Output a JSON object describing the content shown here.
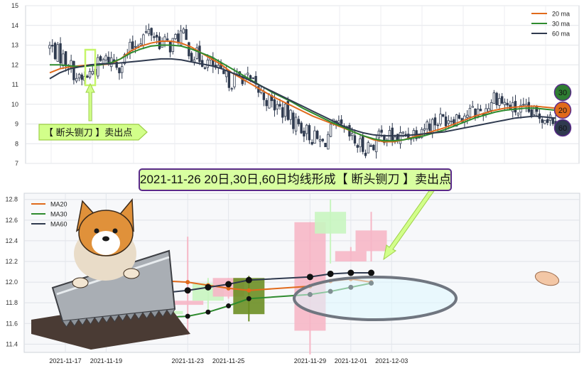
{
  "chart_data": [
    {
      "type": "candlestick",
      "ylim": [
        7,
        15
      ],
      "yticks": [
        "7",
        "8",
        "9",
        "10",
        "11",
        "12",
        "13",
        "14",
        "15"
      ],
      "grid": true,
      "legend_placement": "top-right",
      "legend": [
        {
          "name": "20 ma",
          "color": "#e06a1c"
        },
        {
          "name": "30 ma",
          "color": "#2e8b2e"
        },
        {
          "name": "60 ma",
          "color": "#2f3a4f"
        }
      ],
      "ma_series": [
        {
          "name": "20 ma",
          "color": "#e06a1c",
          "values": [
            11.6,
            11.8,
            11.9,
            11.95,
            12.0,
            12.0,
            12.05,
            12.3,
            12.7,
            12.95,
            13.1,
            13.2,
            13.2,
            13.1,
            12.9,
            12.6,
            12.3,
            12.0,
            11.6,
            11.3,
            11.0,
            10.7,
            10.4,
            10.15,
            9.9,
            9.65,
            9.4,
            9.2,
            9.0,
            8.8,
            8.6,
            8.4,
            8.2,
            8.1,
            8.1,
            8.2,
            8.35,
            8.5,
            8.65,
            8.8,
            9.0,
            9.2,
            9.4,
            9.55,
            9.7,
            9.8,
            9.85,
            9.9,
            9.9,
            9.85,
            9.8
          ]
        },
        {
          "name": "30 ma",
          "color": "#2e8b2e",
          "values": [
            12.0,
            12.0,
            11.95,
            11.9,
            11.95,
            12.0,
            12.1,
            12.3,
            12.6,
            12.8,
            12.95,
            13.0,
            13.0,
            12.95,
            12.8,
            12.6,
            12.4,
            12.1,
            11.8,
            11.5,
            11.2,
            10.9,
            10.6,
            10.35,
            10.1,
            9.8,
            9.55,
            9.3,
            9.05,
            8.85,
            8.6,
            8.4,
            8.25,
            8.15,
            8.15,
            8.2,
            8.3,
            8.4,
            8.55,
            8.7,
            8.9,
            9.1,
            9.3,
            9.45,
            9.6,
            9.7,
            9.75,
            9.8,
            9.8,
            9.75,
            9.7
          ]
        },
        {
          "name": "60 ma",
          "color": "#2f3a4f",
          "values": [
            11.3,
            11.6,
            11.8,
            11.9,
            12.0,
            12.05,
            12.05,
            12.1,
            12.15,
            12.2,
            12.25,
            12.3,
            12.3,
            12.25,
            12.15,
            12.05,
            11.95,
            11.8,
            11.6,
            11.4,
            11.15,
            10.9,
            10.65,
            10.4,
            10.15,
            9.9,
            9.65,
            9.4,
            9.15,
            8.9,
            8.7,
            8.55,
            8.45,
            8.4,
            8.4,
            8.4,
            8.45,
            8.5,
            8.55,
            8.6,
            8.7,
            8.8,
            8.9,
            9.0,
            9.1,
            9.2,
            9.3,
            9.35,
            9.4,
            9.35,
            9.3
          ]
        }
      ],
      "price_path": [
        12.9,
        12.5,
        12.0,
        11.1,
        11.6,
        12.1,
        12.3,
        12.0,
        12.8,
        13.4,
        13.7,
        13.1,
        13.0,
        13.6,
        12.6,
        12.3,
        12.0,
        11.4,
        11.2,
        11.5,
        11.0,
        10.5,
        10.0,
        9.7,
        9.2,
        8.8,
        8.3,
        8.0,
        8.8,
        8.7,
        8.1,
        7.8,
        8.0,
        8.5,
        8.2,
        8.4,
        8.6,
        8.9,
        9.1,
        9.3,
        9.4,
        9.5,
        9.6,
        9.7,
        10.5,
        10.0,
        9.7,
        9.6,
        9.5,
        9.4,
        9.3
      ],
      "circle_labels": [
        "30",
        "20",
        "60"
      ],
      "annotation": "【 断头铡刀 】卖出点"
    },
    {
      "type": "candlestick",
      "title": "2021-11-26 20日,30日,60日均线形成【 断头铡刀 】卖出点",
      "xticks": [
        "2021-11-17",
        "2021-11-19",
        "2021-11-23",
        "2021-11-25",
        "2021-11-29",
        "2021-12-01",
        "2021-12-03"
      ],
      "yticks": [
        "11.4",
        "11.6",
        "11.8",
        "12.0",
        "12.2",
        "12.4",
        "12.6",
        "12.8"
      ],
      "ylim": [
        11.32,
        12.86
      ],
      "grid": true,
      "legend_placement": "top-left",
      "legend": [
        {
          "name": "MA20",
          "color": "#e06a1c"
        },
        {
          "name": "MA30",
          "color": "#2e8b2e"
        },
        {
          "name": "MA60",
          "color": "#2f3a4f"
        }
      ],
      "candles": [
        {
          "date": "2021-11-22",
          "open": 11.72,
          "close": 11.69,
          "high": 12.17,
          "low": 11.64,
          "color": "#c8f5c0"
        },
        {
          "date": "2021-11-23",
          "open": 11.78,
          "close": 11.82,
          "high": 12.44,
          "low": 11.49,
          "color": "#f6b7c6"
        },
        {
          "date": "2021-11-24",
          "open": 11.99,
          "close": 11.82,
          "high": 12.04,
          "low": 11.7,
          "color": "#c8f5c0"
        },
        {
          "date": "2021-11-25",
          "open": 11.86,
          "close": 12.04,
          "high": 12.04,
          "low": 11.84,
          "color": "#f6b7c6"
        },
        {
          "date": "2021-11-26",
          "open": 12.04,
          "close": 11.69,
          "high": 12.06,
          "low": 11.62,
          "color": "#6b8e23"
        },
        {
          "date": "2021-11-29",
          "open": 11.53,
          "close": 12.58,
          "high": 12.58,
          "low": 11.3,
          "color": "#f6b7c6"
        },
        {
          "date": "2021-11-30",
          "open": 12.68,
          "close": 12.47,
          "high": 12.8,
          "low": 12.18,
          "color": "#c8f5c0"
        },
        {
          "date": "2021-12-01",
          "open": 12.2,
          "close": 12.3,
          "high": 12.34,
          "low": 12.2,
          "color": "#f6b7c6"
        },
        {
          "date": "2021-12-02",
          "open": 12.3,
          "close": 12.5,
          "high": 12.68,
          "low": 12.2,
          "color": "#f6b7c6"
        }
      ],
      "series": [
        {
          "name": "MA20",
          "color": "#e06a1c",
          "values": [
            12.01,
            12.0,
            11.97,
            11.94,
            11.92,
            11.96,
            12.01,
            12.03,
            12.0
          ]
        },
        {
          "name": "MA30",
          "color": "#2e8b2e",
          "values": [
            11.66,
            11.67,
            11.71,
            11.77,
            11.84,
            11.88,
            11.91,
            11.95,
            11.99
          ]
        },
        {
          "name": "MA60",
          "color": "#2f3a4f",
          "values": [
            11.9,
            11.92,
            11.95,
            11.98,
            12.02,
            12.05,
            12.08,
            12.09,
            12.09
          ]
        }
      ]
    }
  ]
}
